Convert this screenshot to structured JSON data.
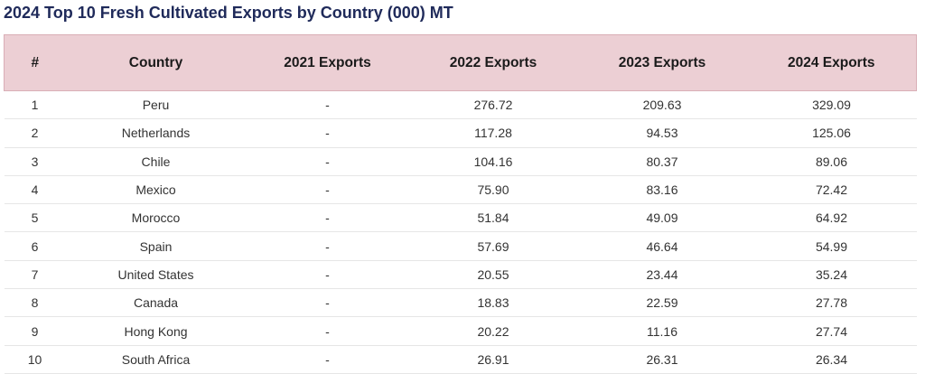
{
  "chart_data": {
    "type": "table",
    "title": "2024 Top 10 Fresh Cultivated Exports by Country (000) MT",
    "columns": [
      "#",
      "Country",
      "2021 Exports",
      "2022 Exports",
      "2023 Exports",
      "2024 Exports"
    ],
    "rows": [
      [
        "1",
        "Peru",
        "-",
        "276.72",
        "209.63",
        "329.09"
      ],
      [
        "2",
        "Netherlands",
        "-",
        "117.28",
        "94.53",
        "125.06"
      ],
      [
        "3",
        "Chile",
        "-",
        "104.16",
        "80.37",
        "89.06"
      ],
      [
        "4",
        "Mexico",
        "-",
        "75.90",
        "83.16",
        "72.42"
      ],
      [
        "5",
        "Morocco",
        "-",
        "51.84",
        "49.09",
        "64.92"
      ],
      [
        "6",
        "Spain",
        "-",
        "57.69",
        "46.64",
        "54.99"
      ],
      [
        "7",
        "United States",
        "-",
        "20.55",
        "23.44",
        "35.24"
      ],
      [
        "8",
        "Canada",
        "-",
        "18.83",
        "22.59",
        "27.78"
      ],
      [
        "9",
        "Hong Kong",
        "-",
        "20.22",
        "11.16",
        "27.74"
      ],
      [
        "10",
        "South Africa",
        "-",
        "26.91",
        "26.31",
        "26.34"
      ]
    ],
    "header_color": "#eccfd4",
    "title_color": "#1f2a5a"
  }
}
